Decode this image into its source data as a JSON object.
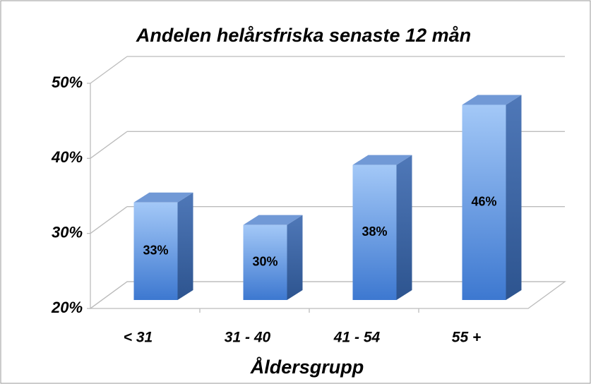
{
  "chart_data": {
    "type": "bar3d",
    "title": "Andelen helårsfriska senaste 12 mån",
    "x_label": "Åldersgrupp",
    "categories": [
      "< 31",
      "31 - 40",
      "41 - 54",
      "55 +"
    ],
    "values": [
      33,
      30,
      38,
      46
    ],
    "value_labels": [
      "33%",
      "30%",
      "38%",
      "46%"
    ],
    "color": "#4a86d8",
    "ylim": [
      20,
      50
    ],
    "yticks": [
      {
        "value": 20,
        "label": "20%"
      },
      {
        "value": 30,
        "label": "30%"
      },
      {
        "value": 40,
        "label": "40%"
      },
      {
        "value": 50,
        "label": "50%"
      }
    ],
    "grid": true
  }
}
